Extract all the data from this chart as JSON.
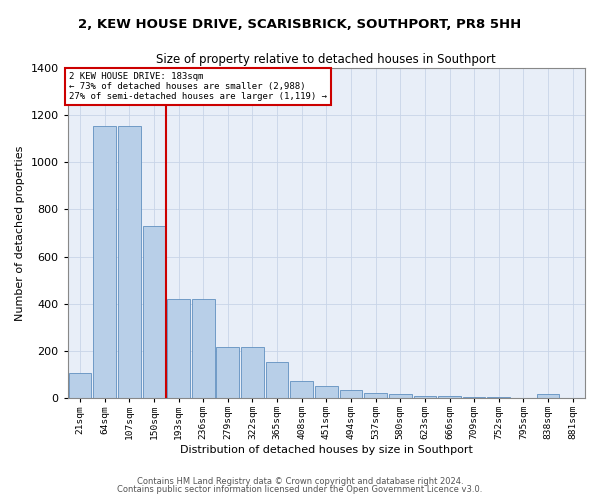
{
  "title": "2, KEW HOUSE DRIVE, SCARISBRICK, SOUTHPORT, PR8 5HH",
  "subtitle": "Size of property relative to detached houses in Southport",
  "xlabel": "Distribution of detached houses by size in Southport",
  "ylabel": "Number of detached properties",
  "categories": [
    "21sqm",
    "64sqm",
    "107sqm",
    "150sqm",
    "193sqm",
    "236sqm",
    "279sqm",
    "322sqm",
    "365sqm",
    "408sqm",
    "451sqm",
    "494sqm",
    "537sqm",
    "580sqm",
    "623sqm",
    "666sqm",
    "709sqm",
    "752sqm",
    "795sqm",
    "838sqm",
    "881sqm"
  ],
  "bar_heights": [
    105,
    1155,
    1155,
    730,
    420,
    420,
    218,
    218,
    152,
    72,
    50,
    32,
    20,
    15,
    10,
    10,
    5,
    5,
    2,
    15,
    0
  ],
  "bar_color": "#b8cfe8",
  "bar_edge_color": "#6090c0",
  "vline_index": 4,
  "annotation_text_line0": "2 KEW HOUSE DRIVE: 183sqm",
  "annotation_text_line1": "← 73% of detached houses are smaller (2,988)",
  "annotation_text_line2": "27% of semi-detached houses are larger (1,119) →",
  "annotation_color": "#cc0000",
  "ylim": [
    0,
    1400
  ],
  "yticks": [
    0,
    200,
    400,
    600,
    800,
    1000,
    1200,
    1400
  ],
  "background_color": "#e8eef8",
  "grid_color": "#c8d4e8",
  "footer_line1": "Contains HM Land Registry data © Crown copyright and database right 2024.",
  "footer_line2": "Contains public sector information licensed under the Open Government Licence v3.0."
}
